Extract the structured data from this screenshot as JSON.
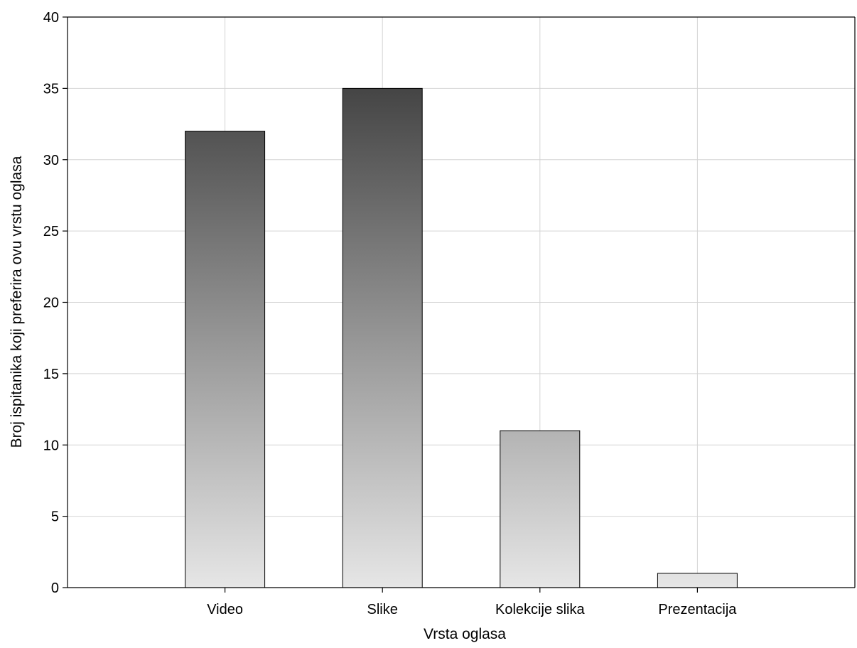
{
  "chart_data": {
    "type": "bar",
    "categories": [
      "Video",
      "Slike",
      "Kolekcije slika",
      "Prezentacija"
    ],
    "values": [
      32,
      35,
      11,
      1
    ],
    "title": "",
    "xlabel": "Vrsta oglasa",
    "ylabel": "Broj ispitanika koji preferira ovu vrstu oglasa",
    "ylim": [
      0,
      40
    ],
    "yticks": [
      "0",
      "5",
      "10",
      "15",
      "20",
      "25",
      "30",
      "35",
      "40"
    ],
    "grid": true,
    "bar_gradient": {
      "top": "#2e2e2e",
      "bottom": "#e6e6e6"
    },
    "bar_outline": "#000000",
    "grid_color": "#d4d4d4"
  }
}
